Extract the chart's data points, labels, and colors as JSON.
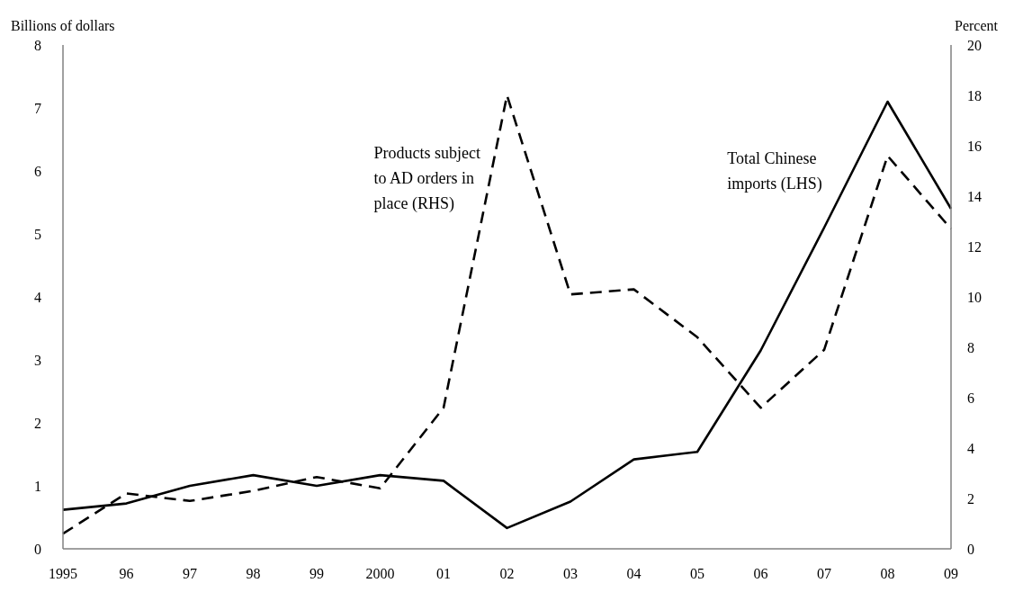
{
  "chart_data": {
    "type": "line",
    "ylabel": "Billions of dollars",
    "y2label": "Percent",
    "categories": [
      "1995",
      "96",
      "97",
      "98",
      "99",
      "2000",
      "01",
      "02",
      "03",
      "04",
      "05",
      "06",
      "07",
      "08",
      "09"
    ],
    "series": [
      {
        "name": "Total Chinese imports (LHS)",
        "color": "#000000",
        "line_style": "solid",
        "values": [
          0.62,
          0.72,
          1.0,
          1.17,
          1.0,
          1.17,
          1.08,
          0.33,
          0.75,
          1.42,
          1.54,
          3.15,
          5.1,
          7.1,
          5.4
        ]
      },
      {
        "name": "Products subject to AD orders in place (RHS)",
        "color": "#000000",
        "line_style": "dashed",
        "axis": "y2",
        "values": [
          0.6,
          2.2,
          1.9,
          2.3,
          2.85,
          2.4,
          5.6,
          18.0,
          10.1,
          10.3,
          8.4,
          5.6,
          7.9,
          15.6,
          12.7
        ]
      }
    ],
    "ylim": [
      0,
      8
    ],
    "yticks": [
      0,
      1,
      2,
      3,
      4,
      5,
      6,
      7,
      8
    ],
    "y2lim": [
      0,
      20
    ],
    "y2ticks": [
      0,
      2,
      4,
      6,
      8,
      10,
      12,
      14,
      16,
      18,
      20
    ],
    "grid": false,
    "legend": false,
    "marker": "none"
  }
}
